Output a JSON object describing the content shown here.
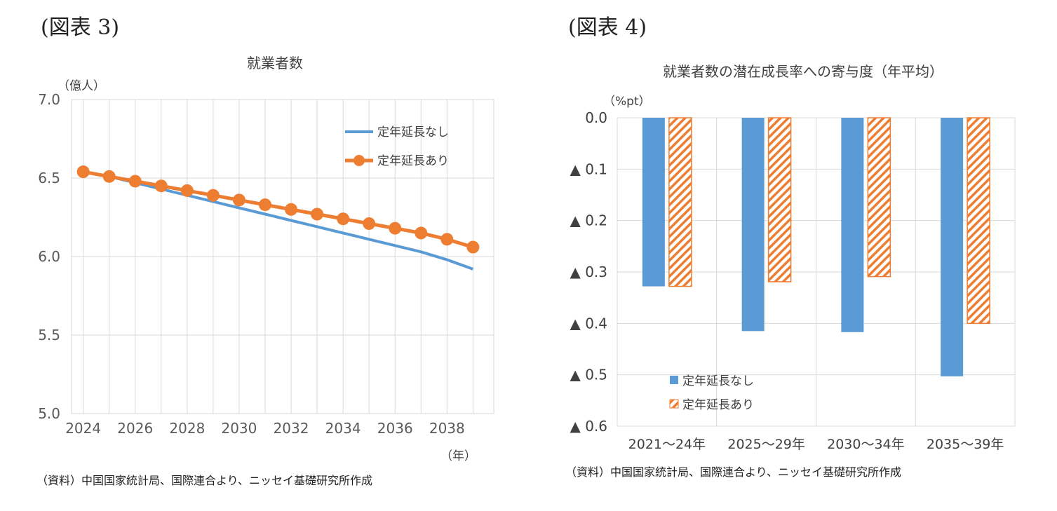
{
  "figure3": {
    "label": "(図表 3)",
    "unit": "（億人）",
    "year_unit": "（年）",
    "source": "（資料）中国国家統計局、国際連合より、ニッセイ基礎研究所作成",
    "chart_data": {
      "type": "line",
      "title": "就業者数",
      "x": [
        2024,
        2025,
        2026,
        2027,
        2028,
        2029,
        2030,
        2031,
        2032,
        2033,
        2034,
        2035,
        2036,
        2037,
        2038,
        2039
      ],
      "x_tick_labels": [
        "2024",
        "2026",
        "2028",
        "2030",
        "2032",
        "2034",
        "2036",
        "2038"
      ],
      "y_tick_labels": [
        "7.0",
        "6.5",
        "6.0",
        "5.5",
        "5.0"
      ],
      "ylim": [
        5.0,
        7.0
      ],
      "grid": true,
      "legend_position": "top-right",
      "series": [
        {
          "name": "定年延長なし",
          "color": "#5b9bd5",
          "marker": false,
          "values": [
            6.54,
            6.51,
            6.47,
            6.43,
            6.39,
            6.35,
            6.31,
            6.27,
            6.23,
            6.19,
            6.15,
            6.11,
            6.07,
            6.03,
            5.98,
            5.92
          ]
        },
        {
          "name": "定年延長あり",
          "color": "#ed7d31",
          "marker": true,
          "values": [
            6.54,
            6.51,
            6.48,
            6.45,
            6.42,
            6.39,
            6.36,
            6.33,
            6.3,
            6.27,
            6.24,
            6.21,
            6.18,
            6.15,
            6.11,
            6.06
          ]
        }
      ]
    }
  },
  "figure4": {
    "label": "(図表 4)",
    "unit": "（%pt）",
    "source": "（資料）中国国家統計局、国際連合より、ニッセイ基礎研究所作成",
    "chart_data": {
      "type": "bar",
      "title": "就業者数の潜在成長率への寄与度（年平均）",
      "categories": [
        "2021～24年",
        "2025～29年",
        "2030～34年",
        "2035～39年"
      ],
      "y_tick_labels": [
        "0.0",
        "▲ 0.1",
        "▲ 0.2",
        "▲ 0.3",
        "▲ 0.4",
        "▲ 0.5",
        "▲ 0.6"
      ],
      "ylim": [
        -0.6,
        0.0
      ],
      "grid": true,
      "legend_position": "bottom-left",
      "series": [
        {
          "name": "定年延長なし",
          "color": "#5b9bd5",
          "pattern": "solid",
          "values": [
            -0.328,
            -0.415,
            -0.417,
            -0.503
          ]
        },
        {
          "name": "定年延長あり",
          "color": "#ed7d31",
          "pattern": "hatched",
          "values": [
            -0.328,
            -0.319,
            -0.309,
            -0.4
          ]
        }
      ]
    }
  }
}
